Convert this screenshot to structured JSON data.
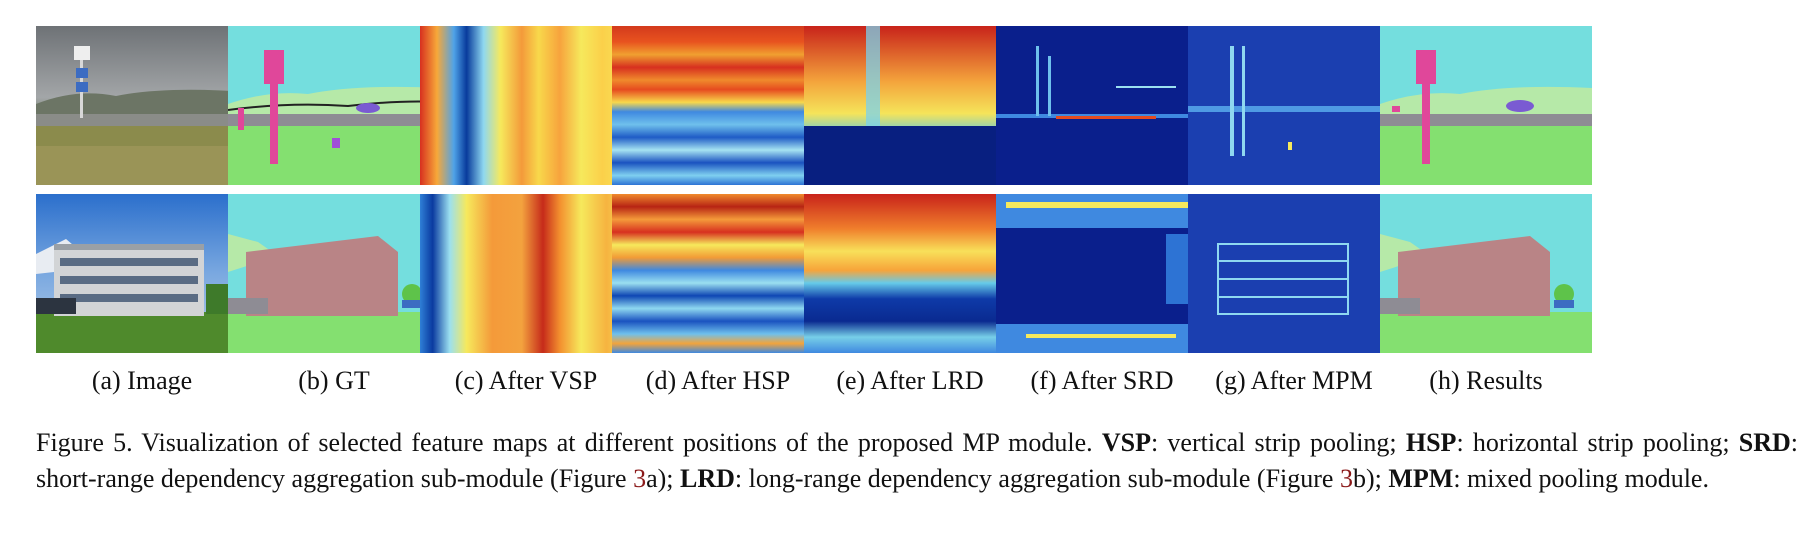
{
  "panels": [
    {
      "id": "a",
      "label": "(a) Image"
    },
    {
      "id": "b",
      "label": "(b) GT"
    },
    {
      "id": "c",
      "label": "(c) After VSP"
    },
    {
      "id": "d",
      "label": "(d) After HSP"
    },
    {
      "id": "e",
      "label": "(e) After LRD"
    },
    {
      "id": "f",
      "label": "(f) After SRD"
    },
    {
      "id": "g",
      "label": "(g) After MPM"
    },
    {
      "id": "h",
      "label": "(h) Results"
    }
  ],
  "caption": {
    "fig_label": "Figure 5.",
    "intro": " Visualization of selected feature maps at different positions of the proposed MP module. ",
    "vsp_term": "VSP",
    "vsp_desc": ": vertical strip pooling; ",
    "hsp_term": "HSP",
    "hsp_desc": ": horizontal strip pooling; ",
    "srd_term": "SRD",
    "srd_desc": ": short-range dependency aggregation sub-module (Figure ",
    "srd_ref": "3",
    "srd_tail": "a); ",
    "lrd_term": "LRD",
    "lrd_desc": ": long-range dependency aggregation sub-module (Figure ",
    "lrd_ref": "3",
    "lrd_tail": "b); ",
    "mpm_term": "MPM",
    "mpm_desc": ": mixed pooling module."
  },
  "colors": {
    "sky": "#74dede",
    "grass": "#84e070",
    "building": "#b98486",
    "pole": "#e0479a",
    "road": "#8e8c94",
    "hills": "#b6e9a8",
    "ref": "#8b1a1a"
  }
}
